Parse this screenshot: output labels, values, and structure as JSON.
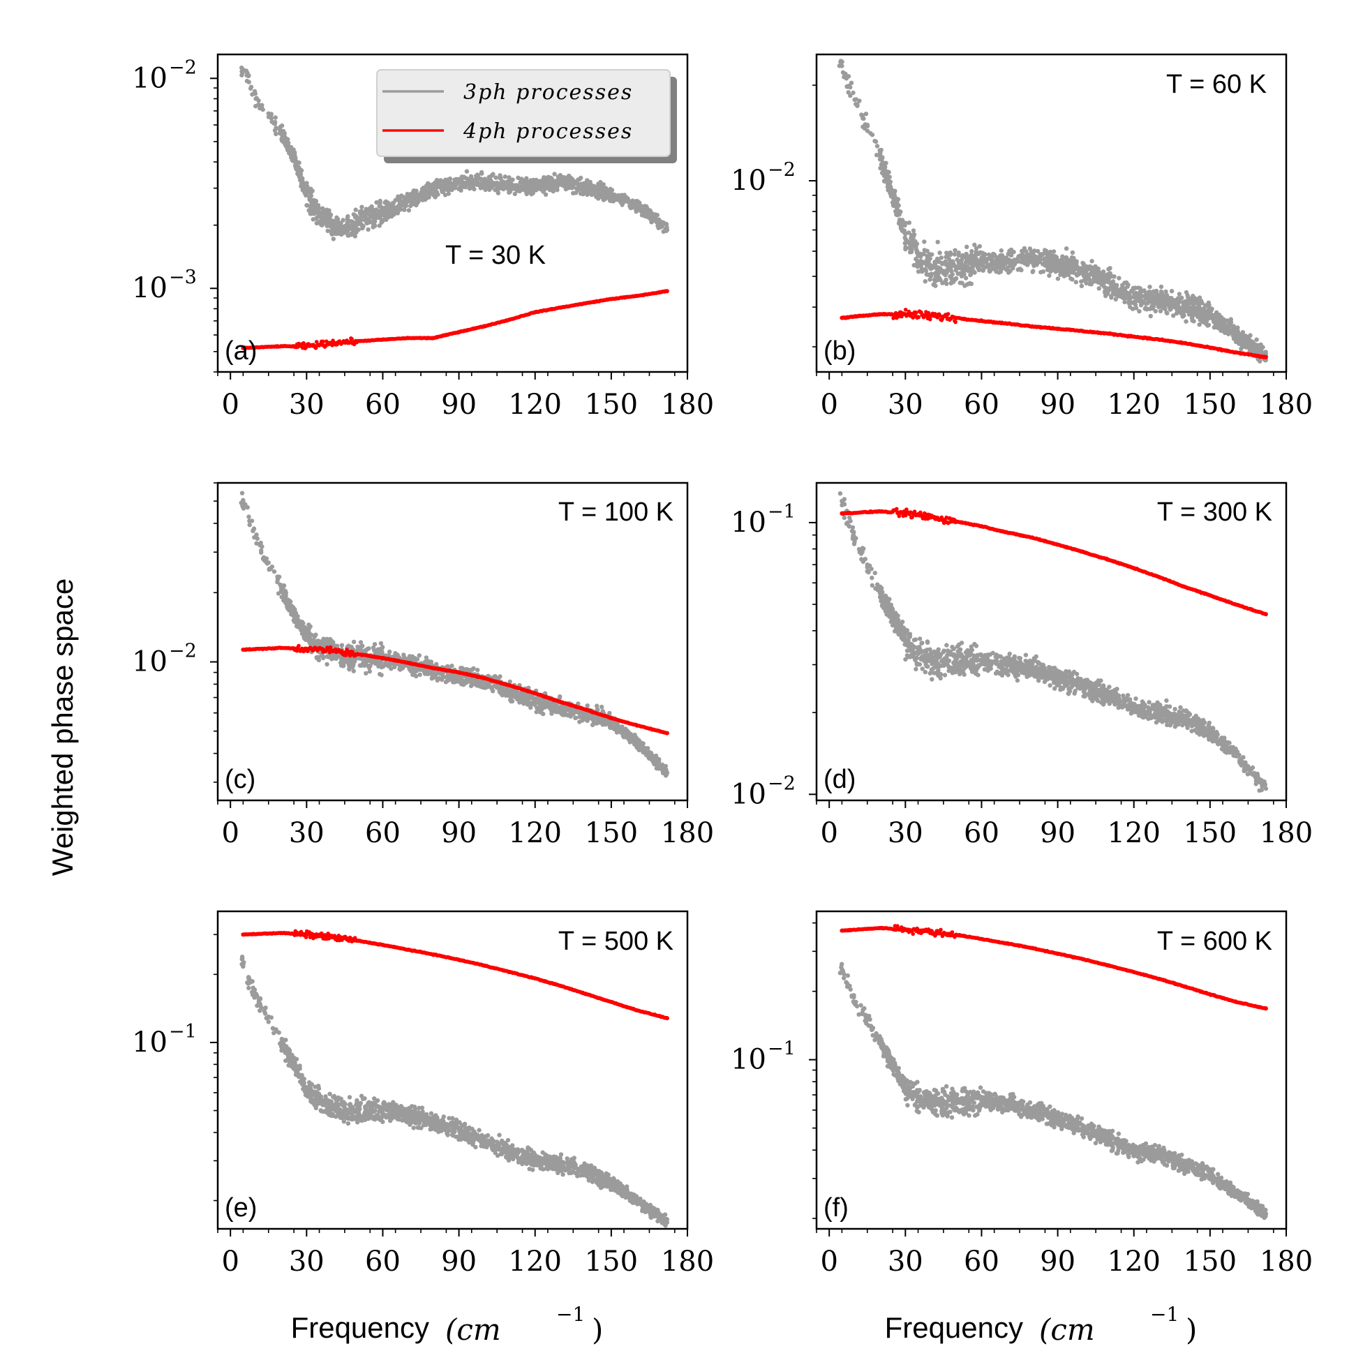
{
  "figure": {
    "ylabel": "Weighted phase space",
    "xlabel_text": "Frequency",
    "xlabel_unit": "(cm",
    "xlabel_exp": "−1",
    "xlabel_close": ")",
    "colors": {
      "three_phonon": "#9b9b9b",
      "four_phonon": "#ff0000"
    }
  },
  "legend": {
    "items": [
      {
        "label": "3ph processes",
        "color": "#9b9b9b"
      },
      {
        "label": "4ph processes",
        "color": "#ff0000"
      }
    ]
  },
  "chart_data": [
    {
      "type": "scatter",
      "panel_label": "(a)",
      "temperature_label": "T = 30 K",
      "xlabel": "",
      "ylabel": "",
      "xlim": [
        -5,
        180
      ],
      "ylim": [
        0.0004,
        0.013
      ],
      "yscale": "log",
      "xticks": [
        0,
        30,
        60,
        90,
        120,
        150,
        180
      ],
      "yticks": [
        {
          "value": 0.01,
          "base": "10",
          "exp": "−2"
        },
        {
          "value": 0.001,
          "base": "10",
          "exp": "−3"
        }
      ],
      "series": [
        {
          "name": "3ph processes",
          "x": [
            5,
            10,
            15,
            20,
            25,
            30,
            35,
            40,
            45,
            50,
            60,
            70,
            80,
            90,
            100,
            110,
            120,
            130,
            140,
            150,
            160,
            172
          ],
          "y": [
            0.011,
            0.008,
            0.0068,
            0.0055,
            0.0042,
            0.0028,
            0.0022,
            0.002,
            0.0019,
            0.0021,
            0.0023,
            0.0026,
            0.003,
            0.0032,
            0.0032,
            0.0031,
            0.0031,
            0.0032,
            0.003,
            0.0028,
            0.0025,
            0.0019
          ]
        },
        {
          "name": "4ph processes",
          "x": [
            5,
            20,
            30,
            40,
            50,
            60,
            70,
            80,
            90,
            100,
            110,
            120,
            130,
            140,
            150,
            160,
            172
          ],
          "y": [
            0.00052,
            0.00053,
            0.00053,
            0.00055,
            0.00056,
            0.00057,
            0.00058,
            0.00058,
            0.00062,
            0.00066,
            0.00071,
            0.00077,
            0.00081,
            0.00085,
            0.00089,
            0.00092,
            0.00097
          ]
        }
      ]
    },
    {
      "type": "scatter",
      "panel_label": "(b)",
      "temperature_label": "T = 60 K",
      "xlabel": "",
      "ylabel": "",
      "xlim": [
        -5,
        180
      ],
      "ylim": [
        0.0025,
        0.025
      ],
      "yscale": "log",
      "xticks": [
        0,
        30,
        60,
        90,
        120,
        150,
        180
      ],
      "yticks": [
        {
          "value": 0.01,
          "base": "10",
          "exp": "−2"
        }
      ],
      "series": [
        {
          "name": "3ph processes",
          "x": [
            5,
            10,
            15,
            20,
            25,
            30,
            35,
            40,
            45,
            50,
            60,
            70,
            80,
            90,
            100,
            110,
            120,
            130,
            140,
            150,
            160,
            172
          ],
          "y": [
            0.023,
            0.018,
            0.015,
            0.012,
            0.009,
            0.0068,
            0.0058,
            0.0054,
            0.0052,
            0.0053,
            0.0055,
            0.0056,
            0.0057,
            0.0055,
            0.0052,
            0.0048,
            0.0043,
            0.0042,
            0.004,
            0.0038,
            0.0033,
            0.0028
          ]
        },
        {
          "name": "4ph processes",
          "x": [
            5,
            20,
            30,
            40,
            50,
            60,
            70,
            80,
            90,
            100,
            110,
            120,
            130,
            140,
            150,
            160,
            172
          ],
          "y": [
            0.0037,
            0.0038,
            0.0038,
            0.00375,
            0.0037,
            0.00362,
            0.00355,
            0.00348,
            0.00342,
            0.00336,
            0.0033,
            0.00323,
            0.00316,
            0.00308,
            0.00298,
            0.00288,
            0.00278
          ]
        }
      ]
    },
    {
      "type": "scatter",
      "panel_label": "(c)",
      "temperature_label": "T = 100 K",
      "xlabel": "",
      "ylabel": "",
      "xlim": [
        -5,
        180
      ],
      "ylim": [
        0.0025,
        0.06
      ],
      "yscale": "log",
      "xticks": [
        0,
        30,
        60,
        90,
        120,
        150,
        180
      ],
      "yticks": [
        {
          "value": 0.01,
          "base": "10",
          "exp": "−2"
        }
      ],
      "series": [
        {
          "name": "3ph processes",
          "x": [
            5,
            10,
            15,
            20,
            25,
            30,
            35,
            40,
            45,
            50,
            60,
            70,
            80,
            90,
            100,
            110,
            120,
            130,
            140,
            150,
            160,
            172
          ],
          "y": [
            0.05,
            0.035,
            0.027,
            0.021,
            0.016,
            0.013,
            0.0115,
            0.011,
            0.0105,
            0.0105,
            0.0103,
            0.0098,
            0.0093,
            0.0087,
            0.0082,
            0.0075,
            0.0068,
            0.0063,
            0.006,
            0.0055,
            0.0045,
            0.0033
          ]
        },
        {
          "name": "4ph processes",
          "x": [
            5,
            20,
            30,
            40,
            50,
            60,
            70,
            80,
            90,
            100,
            110,
            120,
            130,
            140,
            150,
            160,
            172
          ],
          "y": [
            0.0113,
            0.0115,
            0.0114,
            0.0112,
            0.0108,
            0.0104,
            0.0099,
            0.0094,
            0.009,
            0.0085,
            0.0079,
            0.0073,
            0.0067,
            0.0062,
            0.0057,
            0.0053,
            0.0049
          ]
        }
      ]
    },
    {
      "type": "scatter",
      "panel_label": "(d)",
      "temperature_label": "T = 300 K",
      "xlabel": "",
      "ylabel": "",
      "xlim": [
        -5,
        180
      ],
      "ylim": [
        0.0095,
        0.14
      ],
      "yscale": "log",
      "xticks": [
        0,
        30,
        60,
        90,
        120,
        150,
        180
      ],
      "yticks": [
        {
          "value": 0.1,
          "base": "10",
          "exp": "−1"
        },
        {
          "value": 0.01,
          "base": "10",
          "exp": "−2"
        }
      ],
      "series": [
        {
          "name": "3ph processes",
          "x": [
            5,
            10,
            15,
            20,
            25,
            30,
            35,
            40,
            45,
            50,
            60,
            70,
            80,
            90,
            100,
            110,
            120,
            130,
            140,
            150,
            160,
            172
          ],
          "y": [
            0.12,
            0.085,
            0.07,
            0.055,
            0.045,
            0.037,
            0.033,
            0.031,
            0.03,
            0.031,
            0.031,
            0.03,
            0.029,
            0.027,
            0.025,
            0.023,
            0.021,
            0.02,
            0.019,
            0.017,
            0.014,
            0.0105
          ]
        },
        {
          "name": "4ph processes",
          "x": [
            5,
            20,
            30,
            40,
            50,
            60,
            70,
            80,
            90,
            100,
            110,
            120,
            130,
            140,
            150,
            160,
            172
          ],
          "y": [
            0.108,
            0.11,
            0.108,
            0.105,
            0.101,
            0.097,
            0.092,
            0.088,
            0.083,
            0.078,
            0.073,
            0.068,
            0.063,
            0.058,
            0.054,
            0.05,
            0.046
          ]
        }
      ]
    },
    {
      "type": "scatter",
      "panel_label": "(e)",
      "temperature_label": "T = 500 K",
      "xlabel": "Frequency (cm−1)",
      "ylabel": "",
      "xlim": [
        -5,
        180
      ],
      "ylim": [
        0.015,
        0.38
      ],
      "yscale": "log",
      "xticks": [
        0,
        30,
        60,
        90,
        120,
        150,
        180
      ],
      "yticks": [
        {
          "value": 0.1,
          "base": "10",
          "exp": "−1"
        }
      ],
      "series": [
        {
          "name": "3ph processes",
          "x": [
            5,
            10,
            15,
            20,
            25,
            30,
            35,
            40,
            45,
            50,
            60,
            70,
            80,
            90,
            100,
            110,
            120,
            130,
            140,
            150,
            160,
            172
          ],
          "y": [
            0.22,
            0.16,
            0.13,
            0.1,
            0.08,
            0.062,
            0.055,
            0.052,
            0.05,
            0.05,
            0.05,
            0.048,
            0.045,
            0.041,
            0.037,
            0.033,
            0.03,
            0.029,
            0.027,
            0.024,
            0.02,
            0.016
          ]
        },
        {
          "name": "4ph processes",
          "x": [
            5,
            20,
            30,
            40,
            50,
            60,
            70,
            80,
            90,
            100,
            110,
            120,
            130,
            140,
            150,
            160,
            172
          ],
          "y": [
            0.3,
            0.305,
            0.3,
            0.292,
            0.282,
            0.27,
            0.257,
            0.245,
            0.232,
            0.219,
            0.205,
            0.192,
            0.178,
            0.164,
            0.151,
            0.139,
            0.128
          ]
        }
      ]
    },
    {
      "type": "scatter",
      "panel_label": "(f)",
      "temperature_label": "T = 600 K",
      "xlabel": "Frequency (cm−1)",
      "ylabel": "",
      "xlim": [
        -5,
        180
      ],
      "ylim": [
        0.018,
        0.45
      ],
      "yscale": "log",
      "xticks": [
        0,
        30,
        60,
        90,
        120,
        150,
        180
      ],
      "yticks": [
        {
          "value": 0.1,
          "base": "10",
          "exp": "−1"
        }
      ],
      "series": [
        {
          "name": "3ph processes",
          "x": [
            5,
            10,
            15,
            20,
            25,
            30,
            35,
            40,
            45,
            50,
            60,
            70,
            80,
            90,
            100,
            110,
            120,
            130,
            140,
            150,
            160,
            172
          ],
          "y": [
            0.25,
            0.18,
            0.15,
            0.12,
            0.095,
            0.075,
            0.068,
            0.065,
            0.064,
            0.065,
            0.066,
            0.064,
            0.06,
            0.055,
            0.05,
            0.045,
            0.04,
            0.038,
            0.035,
            0.031,
            0.026,
            0.021
          ]
        },
        {
          "name": "4ph processes",
          "x": [
            5,
            20,
            30,
            40,
            50,
            60,
            70,
            80,
            90,
            100,
            110,
            120,
            130,
            140,
            150,
            160,
            172
          ],
          "y": [
            0.37,
            0.38,
            0.375,
            0.365,
            0.355,
            0.34,
            0.325,
            0.31,
            0.293,
            0.277,
            0.26,
            0.243,
            0.227,
            0.21,
            0.194,
            0.18,
            0.168
          ]
        }
      ]
    }
  ]
}
